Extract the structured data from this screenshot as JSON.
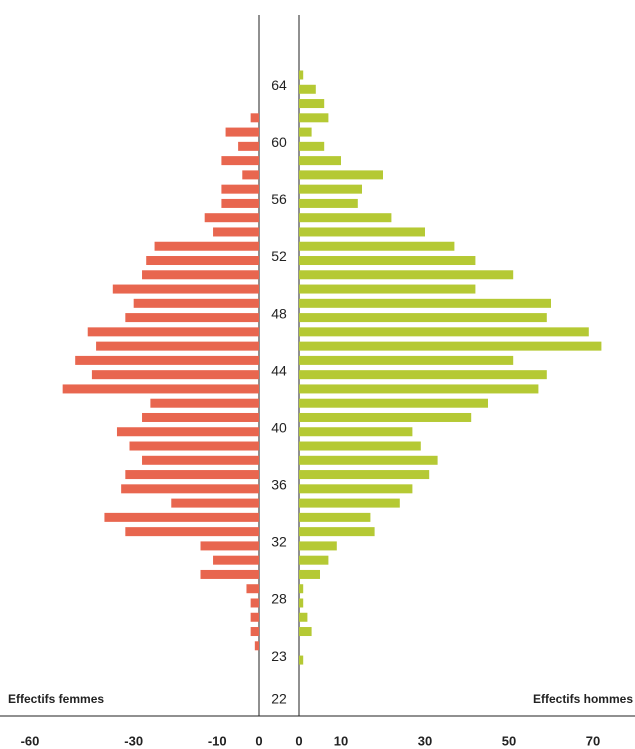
{
  "chart_data": {
    "type": "pyramid",
    "categories": [
      null,
      "64",
      null,
      null,
      null,
      "60",
      null,
      null,
      null,
      "56",
      null,
      null,
      null,
      "52",
      null,
      null,
      null,
      "48",
      null,
      null,
      null,
      "44",
      null,
      null,
      null,
      "40",
      null,
      null,
      null,
      "36",
      null,
      null,
      null,
      "32",
      null,
      null,
      null,
      "28",
      null,
      null,
      null,
      "23",
      null,
      null,
      "22"
    ],
    "series": [
      {
        "name": "Effectifs femmes",
        "color": "#e8664f",
        "xlim": [
          -62,
          0
        ],
        "xticks": [
          -60,
          -30,
          -10,
          0
        ],
        "values": [
          null,
          null,
          null,
          -2,
          -8,
          -5,
          -9,
          -4,
          -9,
          -9,
          -13,
          -11,
          -25,
          -27,
          -28,
          -35,
          -30,
          -32,
          -41,
          -39,
          -44,
          -40,
          -47,
          -26,
          -28,
          -34,
          -31,
          -28,
          -32,
          -33,
          -21,
          -37,
          -32,
          -14,
          -11,
          -14,
          -3,
          -2,
          -2,
          -2,
          -1,
          null,
          null,
          null,
          null
        ]
      },
      {
        "name": "Effectifs hommes",
        "color": "#b5c934",
        "xlim": [
          0,
          80
        ],
        "xticks": [
          0,
          10,
          30,
          50,
          70
        ],
        "values": [
          1,
          4,
          6,
          7,
          3,
          6,
          10,
          20,
          15,
          14,
          22,
          30,
          37,
          42,
          51,
          42,
          60,
          59,
          69,
          72,
          51,
          59,
          57,
          45,
          41,
          27,
          29,
          33,
          31,
          27,
          24,
          17,
          18,
          9,
          7,
          5,
          1,
          1,
          2,
          3,
          null,
          1,
          null,
          null,
          null
        ]
      }
    ]
  }
}
